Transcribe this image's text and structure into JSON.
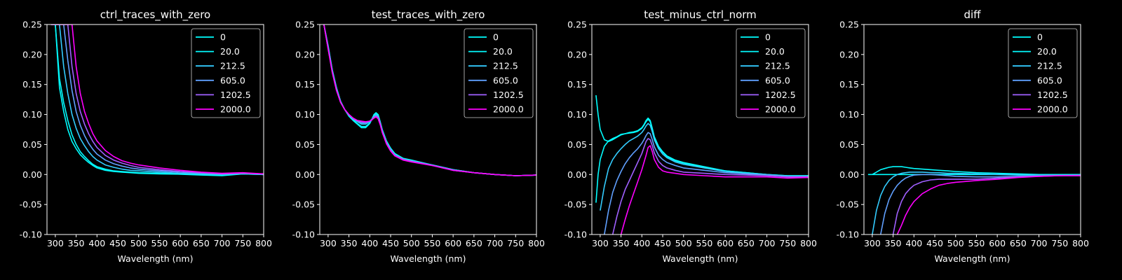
{
  "figure": {
    "background": "#000000",
    "foreground": "#ffffff"
  },
  "series_styles": [
    {
      "name": "0",
      "color": "#00ffff"
    },
    {
      "name": "20.0",
      "color": "#03fcff"
    },
    {
      "name": "212.5",
      "color": "#33ccff"
    },
    {
      "name": "605.0",
      "color": "#60a0ff"
    },
    {
      "name": "1202.5",
      "color": "#a060ff"
    },
    {
      "name": "2000.0",
      "color": "#ff00ff"
    }
  ],
  "chart_data": [
    {
      "type": "line",
      "title": "ctrl_traces_with_zero",
      "xlabel": "Wavelength (nm)",
      "ylabel": "",
      "xlim": [
        280,
        800
      ],
      "ylim": [
        -0.1,
        0.25
      ],
      "xticks": [
        300,
        350,
        400,
        450,
        500,
        550,
        600,
        650,
        700,
        750,
        800
      ],
      "yticks": [
        "-0.10",
        "-0.05",
        "0.00",
        "0.05",
        "0.10",
        "0.15",
        "0.20",
        "0.25"
      ],
      "legend": "upper-right",
      "x": [
        290,
        300,
        310,
        320,
        330,
        340,
        350,
        360,
        370,
        380,
        390,
        400,
        420,
        440,
        460,
        480,
        500,
        550,
        600,
        650,
        700,
        750,
        800
      ],
      "series": [
        {
          "name": "0",
          "values": [
            0.25,
            0.25,
            0.145,
            0.105,
            0.075,
            0.055,
            0.043,
            0.033,
            0.026,
            0.02,
            0.015,
            0.011,
            0.007,
            0.005,
            0.004,
            0.003,
            0.002,
            0.001,
            0.0005,
            -0.001,
            -0.002,
            0.001,
            0.0
          ]
        },
        {
          "name": "20.0",
          "values": [
            0.25,
            0.25,
            0.16,
            0.12,
            0.09,
            0.066,
            0.05,
            0.038,
            0.03,
            0.023,
            0.017,
            0.013,
            0.009,
            0.006,
            0.005,
            0.004,
            0.003,
            0.002,
            0.001,
            0.0,
            -0.001,
            0.001,
            0.0
          ]
        },
        {
          "name": "212.5",
          "values": [
            0.25,
            0.25,
            0.25,
            0.18,
            0.135,
            0.1,
            0.077,
            0.06,
            0.048,
            0.038,
            0.03,
            0.024,
            0.016,
            0.012,
            0.009,
            0.007,
            0.006,
            0.004,
            0.002,
            0.001,
            0.0,
            0.002,
            0.0
          ]
        },
        {
          "name": "605.0",
          "values": [
            0.25,
            0.25,
            0.25,
            0.25,
            0.19,
            0.14,
            0.105,
            0.082,
            0.065,
            0.052,
            0.042,
            0.034,
            0.024,
            0.018,
            0.014,
            0.011,
            0.009,
            0.006,
            0.004,
            0.002,
            0.001,
            0.002,
            0.001
          ]
        },
        {
          "name": "1202.5",
          "values": [
            0.25,
            0.25,
            0.25,
            0.25,
            0.25,
            0.18,
            0.135,
            0.105,
            0.084,
            0.068,
            0.055,
            0.045,
            0.032,
            0.024,
            0.019,
            0.015,
            0.012,
            0.008,
            0.005,
            0.003,
            0.001,
            0.002,
            0.001
          ]
        },
        {
          "name": "2000.0",
          "values": [
            0.25,
            0.25,
            0.25,
            0.25,
            0.25,
            0.25,
            0.18,
            0.135,
            0.105,
            0.085,
            0.068,
            0.056,
            0.04,
            0.03,
            0.023,
            0.019,
            0.016,
            0.011,
            0.007,
            0.004,
            0.002,
            0.003,
            0.001
          ]
        }
      ]
    },
    {
      "type": "line",
      "title": "test_traces_with_zero",
      "xlabel": "Wavelength (nm)",
      "ylabel": "",
      "xlim": [
        280,
        800
      ],
      "ylim": [
        -0.1,
        0.25
      ],
      "xticks": [
        300,
        350,
        400,
        450,
        500,
        550,
        600,
        650,
        700,
        750,
        800
      ],
      "yticks": [
        "-0.10",
        "-0.05",
        "0.00",
        "0.05",
        "0.10",
        "0.15",
        "0.20",
        "0.25"
      ],
      "legend": "upper-right",
      "x": [
        290,
        300,
        310,
        320,
        330,
        340,
        350,
        360,
        370,
        380,
        390,
        400,
        405,
        410,
        415,
        420,
        425,
        430,
        440,
        450,
        460,
        480,
        500,
        550,
        600,
        650,
        700,
        750,
        800
      ],
      "series": [
        {
          "name": "0",
          "values": [
            0.25,
            0.215,
            0.175,
            0.145,
            0.122,
            0.108,
            0.097,
            0.09,
            0.084,
            0.078,
            0.078,
            0.085,
            0.092,
            0.1,
            0.103,
            0.1,
            0.088,
            0.075,
            0.056,
            0.044,
            0.035,
            0.027,
            0.024,
            0.016,
            0.008,
            0.003,
            0.0,
            -0.002,
            -0.001
          ]
        },
        {
          "name": "20.0",
          "values": [
            0.25,
            0.213,
            0.174,
            0.144,
            0.122,
            0.108,
            0.098,
            0.091,
            0.085,
            0.08,
            0.08,
            0.086,
            0.092,
            0.099,
            0.102,
            0.099,
            0.087,
            0.074,
            0.055,
            0.043,
            0.034,
            0.026,
            0.023,
            0.016,
            0.008,
            0.003,
            0.0,
            -0.002,
            -0.001
          ]
        },
        {
          "name": "212.5",
          "values": [
            0.25,
            0.212,
            0.173,
            0.143,
            0.121,
            0.108,
            0.099,
            0.092,
            0.088,
            0.084,
            0.084,
            0.088,
            0.092,
            0.097,
            0.1,
            0.097,
            0.086,
            0.073,
            0.054,
            0.042,
            0.033,
            0.026,
            0.023,
            0.016,
            0.008,
            0.003,
            0.0,
            -0.002,
            -0.001
          ]
        },
        {
          "name": "605.0",
          "values": [
            0.25,
            0.211,
            0.172,
            0.142,
            0.121,
            0.108,
            0.1,
            0.093,
            0.089,
            0.086,
            0.086,
            0.089,
            0.092,
            0.096,
            0.098,
            0.096,
            0.085,
            0.072,
            0.053,
            0.041,
            0.032,
            0.025,
            0.022,
            0.015,
            0.007,
            0.003,
            0.0,
            -0.002,
            -0.001
          ]
        },
        {
          "name": "1202.5",
          "values": [
            0.25,
            0.21,
            0.171,
            0.141,
            0.12,
            0.108,
            0.1,
            0.094,
            0.09,
            0.088,
            0.087,
            0.089,
            0.091,
            0.095,
            0.097,
            0.094,
            0.084,
            0.071,
            0.052,
            0.04,
            0.032,
            0.025,
            0.022,
            0.015,
            0.007,
            0.003,
            0.0,
            -0.002,
            -0.001
          ]
        },
        {
          "name": "2000.0",
          "values": [
            0.25,
            0.209,
            0.17,
            0.14,
            0.12,
            0.108,
            0.1,
            0.094,
            0.09,
            0.089,
            0.088,
            0.089,
            0.091,
            0.094,
            0.096,
            0.093,
            0.083,
            0.07,
            0.051,
            0.039,
            0.031,
            0.024,
            0.021,
            0.015,
            0.007,
            0.003,
            0.0,
            -0.002,
            -0.001
          ]
        }
      ]
    },
    {
      "type": "line",
      "title": "test_minus_ctrl_norm",
      "xlabel": "Wavelength (nm)",
      "ylabel": "",
      "xlim": [
        280,
        800
      ],
      "ylim": [
        -0.1,
        0.25
      ],
      "xticks": [
        300,
        350,
        400,
        450,
        500,
        550,
        600,
        650,
        700,
        750,
        800
      ],
      "yticks": [
        "-0.10",
        "-0.05",
        "0.00",
        "0.05",
        "0.10",
        "0.15",
        "0.20",
        "0.25"
      ],
      "legend": "upper-right",
      "x": [
        290,
        295,
        300,
        310,
        320,
        330,
        340,
        350,
        360,
        370,
        380,
        390,
        400,
        405,
        410,
        415,
        420,
        425,
        430,
        440,
        450,
        460,
        480,
        500,
        550,
        600,
        650,
        700,
        750,
        800
      ],
      "series": [
        {
          "name": "0",
          "values": [
            0.132,
            0.1,
            0.075,
            0.058,
            0.055,
            0.058,
            0.062,
            0.066,
            0.068,
            0.07,
            0.071,
            0.073,
            0.078,
            0.083,
            0.09,
            0.094,
            0.09,
            0.077,
            0.063,
            0.047,
            0.038,
            0.031,
            0.024,
            0.02,
            0.013,
            0.006,
            0.003,
            0.0,
            -0.002,
            -0.002
          ]
        },
        {
          "name": "20.0",
          "values": [
            -0.047,
            0.0,
            0.025,
            0.047,
            0.056,
            0.06,
            0.063,
            0.067,
            0.068,
            0.069,
            0.07,
            0.072,
            0.077,
            0.082,
            0.088,
            0.092,
            0.088,
            0.075,
            0.062,
            0.046,
            0.037,
            0.03,
            0.023,
            0.019,
            0.012,
            0.006,
            0.003,
            0.0,
            -0.002,
            -0.002
          ]
        },
        {
          "name": "212.5",
          "values": [
            null,
            null,
            -0.06,
            -0.02,
            0.01,
            0.025,
            0.035,
            0.043,
            0.05,
            0.056,
            0.06,
            0.064,
            0.07,
            0.075,
            0.081,
            0.085,
            0.082,
            0.071,
            0.058,
            0.043,
            0.034,
            0.028,
            0.021,
            0.017,
            0.011,
            0.005,
            0.002,
            0.0,
            -0.003,
            -0.003
          ]
        },
        {
          "name": "605.0",
          "values": [
            null,
            null,
            null,
            -0.1,
            -0.06,
            -0.03,
            -0.01,
            0.005,
            0.018,
            0.028,
            0.036,
            0.043,
            0.052,
            0.058,
            0.065,
            0.07,
            0.068,
            0.058,
            0.046,
            0.032,
            0.025,
            0.02,
            0.015,
            0.011,
            0.007,
            0.003,
            0.001,
            -0.001,
            -0.003,
            -0.003
          ]
        },
        {
          "name": "1202.5",
          "values": [
            null,
            null,
            null,
            null,
            null,
            -0.1,
            -0.07,
            -0.045,
            -0.025,
            -0.01,
            0.005,
            0.02,
            0.035,
            0.045,
            0.055,
            0.06,
            0.058,
            0.048,
            0.036,
            0.022,
            0.015,
            0.011,
            0.007,
            0.004,
            0.002,
            0.0,
            -0.001,
            -0.002,
            -0.004,
            -0.004
          ]
        },
        {
          "name": "2000.0",
          "values": [
            null,
            null,
            null,
            null,
            null,
            null,
            null,
            -0.1,
            -0.075,
            -0.052,
            -0.032,
            -0.012,
            0.008,
            0.02,
            0.032,
            0.045,
            0.048,
            0.038,
            0.025,
            0.012,
            0.006,
            0.004,
            0.002,
            0.0,
            -0.002,
            -0.004,
            -0.004,
            -0.004,
            -0.006,
            -0.005
          ]
        }
      ]
    },
    {
      "type": "line",
      "title": "diff",
      "xlabel": "Wavelength (nm)",
      "ylabel": "",
      "xlim": [
        280,
        800
      ],
      "ylim": [
        -0.1,
        0.25
      ],
      "xticks": [
        300,
        350,
        400,
        450,
        500,
        550,
        600,
        650,
        700,
        750,
        800
      ],
      "yticks": [
        "-0.10",
        "-0.05",
        "0.00",
        "0.05",
        "0.10",
        "0.15",
        "0.20",
        "0.25"
      ],
      "legend": "upper-right",
      "x": [
        290,
        300,
        310,
        320,
        330,
        340,
        350,
        360,
        370,
        380,
        390,
        400,
        420,
        440,
        460,
        480,
        500,
        550,
        600,
        650,
        700,
        750,
        800
      ],
      "series": [
        {
          "name": "0",
          "values": [
            0.0,
            0.0,
            0.0,
            0.0,
            0.0,
            0.0,
            0.0,
            0.0,
            0.0,
            0.0,
            0.0,
            0.0,
            0.0,
            0.0,
            0.0,
            0.0,
            0.0,
            0.0,
            0.0,
            0.0,
            0.0,
            0.0,
            0.0
          ]
        },
        {
          "name": "20.0",
          "values": [
            null,
            0.0,
            0.004,
            0.008,
            0.01,
            0.012,
            0.013,
            0.013,
            0.013,
            0.012,
            0.011,
            0.01,
            0.009,
            0.008,
            0.007,
            0.006,
            0.005,
            0.003,
            0.002,
            0.001,
            0.0,
            0.0,
            0.0
          ]
        },
        {
          "name": "212.5",
          "values": [
            null,
            -0.1,
            -0.06,
            -0.035,
            -0.02,
            -0.01,
            -0.004,
            0.0,
            0.002,
            0.003,
            0.004,
            0.004,
            0.004,
            0.003,
            0.003,
            0.002,
            0.002,
            0.001,
            0.0,
            -0.001,
            -0.001,
            -0.001,
            -0.001
          ]
        },
        {
          "name": "605.0",
          "values": [
            null,
            null,
            null,
            -0.1,
            -0.065,
            -0.042,
            -0.028,
            -0.018,
            -0.011,
            -0.006,
            -0.003,
            -0.001,
            0.0,
            0.0,
            -0.001,
            -0.002,
            -0.003,
            -0.004,
            -0.004,
            -0.003,
            -0.002,
            -0.002,
            -0.001
          ]
        },
        {
          "name": "1202.5",
          "values": [
            null,
            null,
            null,
            null,
            null,
            null,
            -0.1,
            -0.065,
            -0.045,
            -0.032,
            -0.024,
            -0.018,
            -0.012,
            -0.009,
            -0.008,
            -0.008,
            -0.008,
            -0.008,
            -0.006,
            -0.004,
            -0.003,
            -0.002,
            -0.002
          ]
        },
        {
          "name": "2000.0",
          "values": [
            null,
            null,
            null,
            null,
            null,
            null,
            null,
            -0.1,
            -0.085,
            -0.068,
            -0.055,
            -0.045,
            -0.032,
            -0.024,
            -0.018,
            -0.015,
            -0.013,
            -0.01,
            -0.008,
            -0.005,
            -0.003,
            -0.002,
            -0.002
          ]
        }
      ]
    }
  ]
}
